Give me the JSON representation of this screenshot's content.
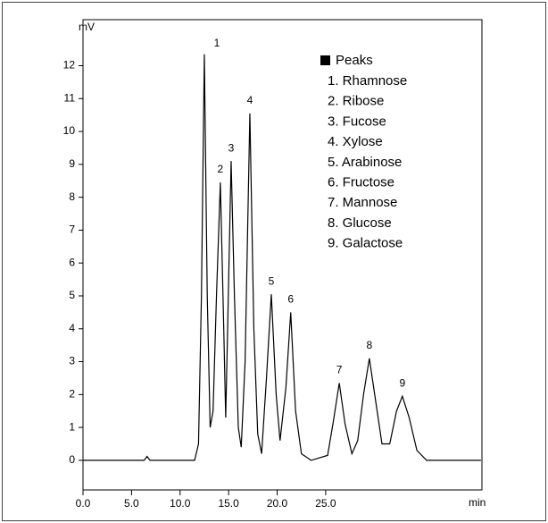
{
  "chart_data": {
    "type": "line",
    "y_label": "mV",
    "x_label": "min",
    "x": [
      0,
      6.3,
      6.6,
      6.9,
      11.5,
      11.9,
      12.2,
      12.5,
      12.8,
      13.1,
      13.4,
      13.75,
      14.15,
      14.5,
      14.7,
      14.9,
      15.26,
      15.6,
      16.0,
      16.3,
      16.7,
      17.19,
      17.6,
      18.0,
      18.4,
      18.9,
      19.4,
      19.9,
      20.3,
      20.9,
      21.4,
      21.9,
      22.5,
      23.5,
      25.2,
      25.8,
      26.4,
      27.0,
      27.7,
      28.3,
      28.9,
      29.5,
      30.1,
      30.8,
      31.6,
      32.3,
      32.9,
      33.6,
      34.4,
      35.4,
      41
    ],
    "series": [
      {
        "color": "#000000",
        "values": [
          0,
          0,
          0.12,
          0,
          0,
          0.5,
          5,
          12.35,
          5,
          1.0,
          1.5,
          5,
          8.45,
          4,
          1.3,
          4,
          9.1,
          5,
          1.0,
          0.4,
          3,
          10.55,
          4,
          0.8,
          0.2,
          2.5,
          5.05,
          2,
          0.6,
          2.2,
          4.5,
          1.5,
          0.2,
          0,
          0.15,
          1.2,
          2.35,
          1.1,
          0.2,
          0.6,
          2.0,
          3.1,
          1.9,
          0.5,
          0.5,
          1.5,
          1.95,
          1.3,
          0.3,
          0,
          0
        ]
      }
    ],
    "peak_labels": [
      "1",
      "2",
      "3",
      "4",
      "5",
      "6",
      "7",
      "8",
      "9"
    ],
    "legend": {
      "title": "Peaks",
      "items": [
        "1. Rhamnose",
        "2. Ribose",
        "3. Fucose",
        "4. Xylose",
        "5. Arabinose",
        "6. Fructose",
        "7. Mannose",
        "8. Glucose",
        "9. Galactose"
      ]
    },
    "xlim": [
      0,
      41.1
    ],
    "ylim": [
      -0.9,
      13.4
    ],
    "xticks": [
      {
        "value": 0,
        "label": "0.0"
      },
      {
        "value": 5,
        "label": "5.0"
      },
      {
        "value": 10,
        "label": "10.0"
      },
      {
        "value": 15,
        "label": "15.0"
      },
      {
        "value": 20,
        "label": "20.0"
      },
      {
        "value": 25,
        "label": "25.0"
      }
    ],
    "yticks": [
      0,
      1,
      2,
      3,
      4,
      5,
      6,
      7,
      8,
      9,
      10,
      11,
      12
    ]
  }
}
